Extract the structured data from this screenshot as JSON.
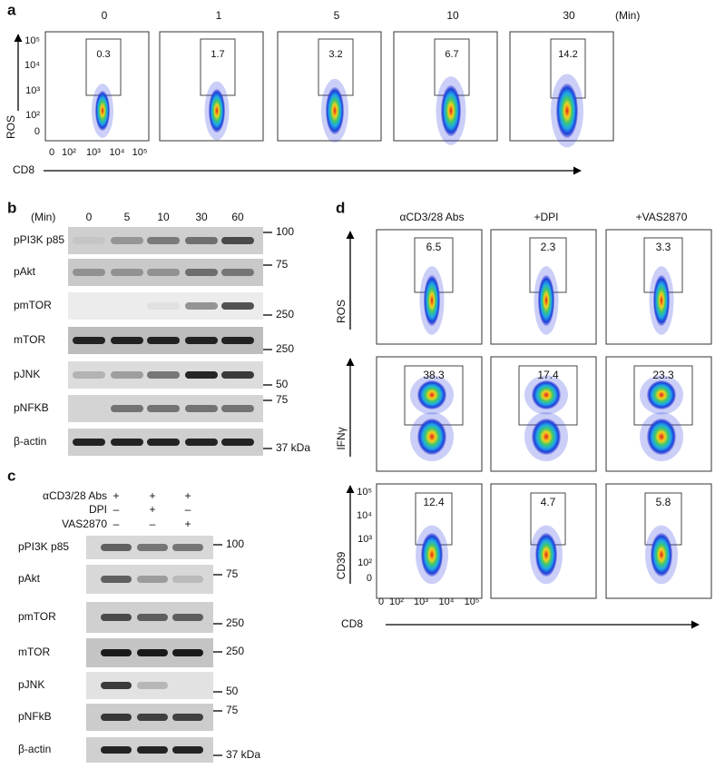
{
  "panel_a": {
    "label": "a",
    "time_unit": "(Min)",
    "times": [
      "0",
      "1",
      "5",
      "10",
      "30"
    ],
    "gates": [
      "0.3",
      "1.7",
      "3.2",
      "6.7",
      "14.2"
    ],
    "y_axis": "ROS",
    "x_axis": "CD8",
    "y_ticks": [
      "10⁵",
      "10⁴",
      "10³",
      "10²",
      "0"
    ],
    "x_ticks": [
      "0",
      "10²",
      "10³",
      "10⁴",
      "10⁵"
    ]
  },
  "panel_b": {
    "label": "b",
    "time_unit": "(Min)",
    "times": [
      "0",
      "5",
      "10",
      "30",
      "60"
    ],
    "blots": [
      {
        "name": "pPI3K p85",
        "marker": "100"
      },
      {
        "name": "pAkt",
        "marker": "75"
      },
      {
        "name": "pmTOR",
        "marker": "250"
      },
      {
        "name": "mTOR",
        "marker": "250"
      },
      {
        "name": "pJNK",
        "marker": "50"
      },
      {
        "name": "pNFKB",
        "marker": "75"
      },
      {
        "name": "β-actin",
        "marker": "37 kDa"
      }
    ]
  },
  "panel_c": {
    "label": "c",
    "conditions": [
      {
        "name": "αCD3/28 Abs",
        "signs": [
          "+",
          "+",
          "+"
        ]
      },
      {
        "name": "DPI",
        "signs": [
          "–",
          "+",
          "–"
        ]
      },
      {
        "name": "VAS2870",
        "signs": [
          "–",
          "–",
          "+"
        ]
      }
    ],
    "blots": [
      {
        "name": "pPI3K p85",
        "marker": "100"
      },
      {
        "name": "pAkt",
        "marker": "75"
      },
      {
        "name": "pmTOR",
        "marker": "250"
      },
      {
        "name": "mTOR",
        "marker": "250"
      },
      {
        "name": "pJNK",
        "marker": "50"
      },
      {
        "name": "pNFkB",
        "marker": "75"
      },
      {
        "name": "β-actin",
        "marker": "37 kDa"
      }
    ]
  },
  "panel_d": {
    "label": "d",
    "columns": [
      "αCD3/28 Abs",
      "+DPI",
      "+VAS2870"
    ],
    "rows": [
      {
        "y_axis": "ROS",
        "gates": [
          "6.5",
          "2.3",
          "3.3"
        ]
      },
      {
        "y_axis": "IFNγ",
        "gates": [
          "38.3",
          "17.4",
          "23.3"
        ]
      },
      {
        "y_axis": "CD39",
        "gates": [
          "12.4",
          "4.7",
          "5.8"
        ]
      }
    ],
    "x_axis": "CD8",
    "y_ticks": [
      "10⁵",
      "10⁴",
      "10³",
      "10²",
      "0"
    ],
    "x_ticks": [
      "0",
      "10²",
      "10³",
      "10⁴",
      "10⁵"
    ]
  }
}
